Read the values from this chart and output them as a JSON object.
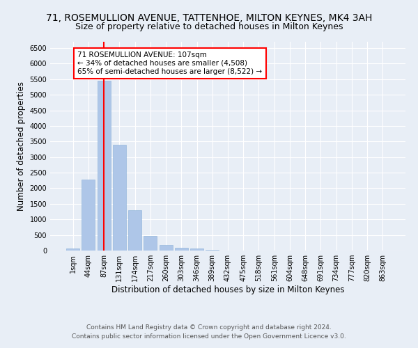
{
  "title": "71, ROSEMULLION AVENUE, TATTENHOE, MILTON KEYNES, MK4 3AH",
  "subtitle": "Size of property relative to detached houses in Milton Keynes",
  "xlabel": "Distribution of detached houses by size in Milton Keynes",
  "ylabel": "Number of detached properties",
  "bar_labels": [
    "1sqm",
    "44sqm",
    "87sqm",
    "131sqm",
    "174sqm",
    "217sqm",
    "260sqm",
    "303sqm",
    "346sqm",
    "389sqm",
    "432sqm",
    "475sqm",
    "518sqm",
    "561sqm",
    "604sqm",
    "648sqm",
    "691sqm",
    "734sqm",
    "777sqm",
    "820sqm",
    "863sqm"
  ],
  "bar_values": [
    70,
    2280,
    5450,
    3400,
    1300,
    480,
    175,
    90,
    65,
    30,
    10,
    5,
    3,
    2,
    1,
    1,
    1,
    1,
    1,
    1,
    1
  ],
  "bar_color": "#aec6e8",
  "bar_edge_color": "#8ab0d8",
  "vline_x_index": 2,
  "vline_color": "red",
  "annotation_text": "71 ROSEMULLION AVENUE: 107sqm\n← 34% of detached houses are smaller (4,508)\n65% of semi-detached houses are larger (8,522) →",
  "annotation_box_color": "white",
  "annotation_box_edge": "red",
  "ylim": [
    0,
    6700
  ],
  "yticks": [
    0,
    500,
    1000,
    1500,
    2000,
    2500,
    3000,
    3500,
    4000,
    4500,
    5000,
    5500,
    6000,
    6500
  ],
  "bg_color": "#e8eef6",
  "plot_bg_color": "#e8eef6",
  "footer1": "Contains HM Land Registry data © Crown copyright and database right 2024.",
  "footer2": "Contains public sector information licensed under the Open Government Licence v3.0.",
  "title_fontsize": 10,
  "subtitle_fontsize": 9,
  "xlabel_fontsize": 8.5,
  "ylabel_fontsize": 8.5,
  "tick_fontsize": 7,
  "footer_fontsize": 6.5,
  "annotation_fontsize": 7.5
}
